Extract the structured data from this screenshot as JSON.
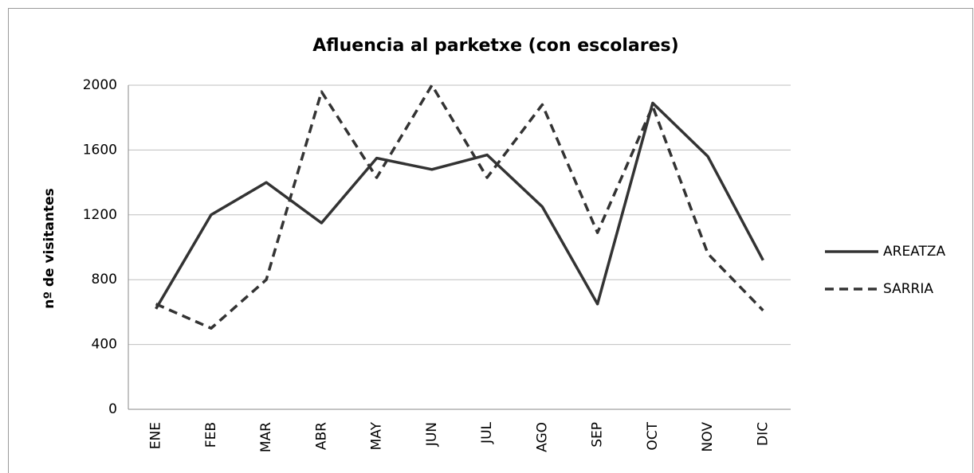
{
  "chart_data": {
    "type": "line",
    "title": "Afluencia al parketxe (con escolares)",
    "y_label": "nº de visitantes",
    "categories": [
      "ENE",
      "FEB",
      "MAR",
      "ABR",
      "MAY",
      "JUN",
      "JUL",
      "AGO",
      "SEP",
      "OCT",
      "NOV",
      "DIC"
    ],
    "series": [
      {
        "name": "AREATZA",
        "color": "#333333",
        "line_style": "solid",
        "values": [
          620,
          1200,
          1400,
          1150,
          1550,
          1480,
          1570,
          1250,
          650,
          1890,
          1560,
          920
        ]
      },
      {
        "name": "SARRIA",
        "color": "#333333",
        "line_style": "dashed",
        "values": [
          650,
          500,
          800,
          1960,
          1430,
          2000,
          1430,
          1880,
          1090,
          1870,
          960,
          610
        ]
      }
    ],
    "ylim": [
      0,
      2000
    ],
    "yticks": [
      0,
      400,
      800,
      1200,
      1600,
      2000
    ],
    "grid": true,
    "legend": "right"
  }
}
